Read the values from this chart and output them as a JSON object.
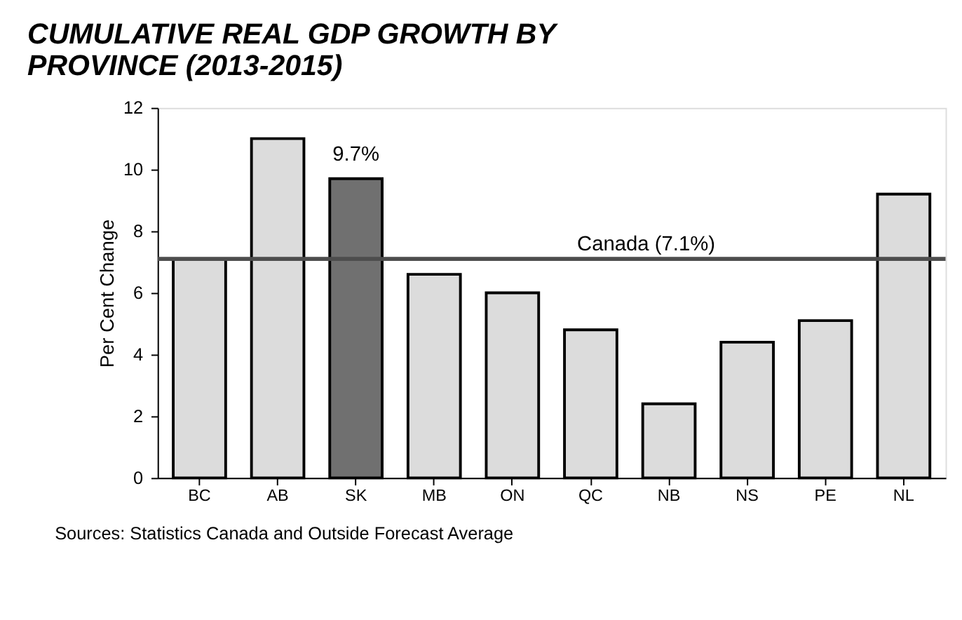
{
  "chart_data": {
    "type": "bar",
    "title": "CUMULATIVE REAL GDP GROWTH BY PROVINCE (2013-2015)",
    "ylabel": "Per Cent Change",
    "categories": [
      "BC",
      "AB",
      "SK",
      "MB",
      "ON",
      "QC",
      "NB",
      "NS",
      "PE",
      "NL"
    ],
    "values": [
      7.1,
      11.0,
      9.7,
      6.6,
      6.0,
      4.8,
      2.4,
      4.4,
      5.1,
      9.2
    ],
    "colors": [
      "#dcdcdc",
      "#dcdcdc",
      "#707070",
      "#dcdcdc",
      "#dcdcdc",
      "#dcdcdc",
      "#dcdcdc",
      "#dcdcdc",
      "#dcdcdc",
      "#dcdcdc"
    ],
    "value_labels": [
      null,
      null,
      "9.7%",
      null,
      null,
      null,
      null,
      null,
      null,
      null
    ],
    "ylim": [
      0,
      12
    ],
    "yticks": [
      0,
      2,
      4,
      6,
      8,
      10,
      12
    ],
    "ref_lines": [
      {
        "axis": "y",
        "value": 7.1,
        "label": "Canada (7.1%)",
        "color": "#4d4d4d",
        "line_style": "solid"
      }
    ],
    "annotations": [
      "Sources: Statistics Canada and Outside Forecast Average"
    ],
    "grid": false
  }
}
